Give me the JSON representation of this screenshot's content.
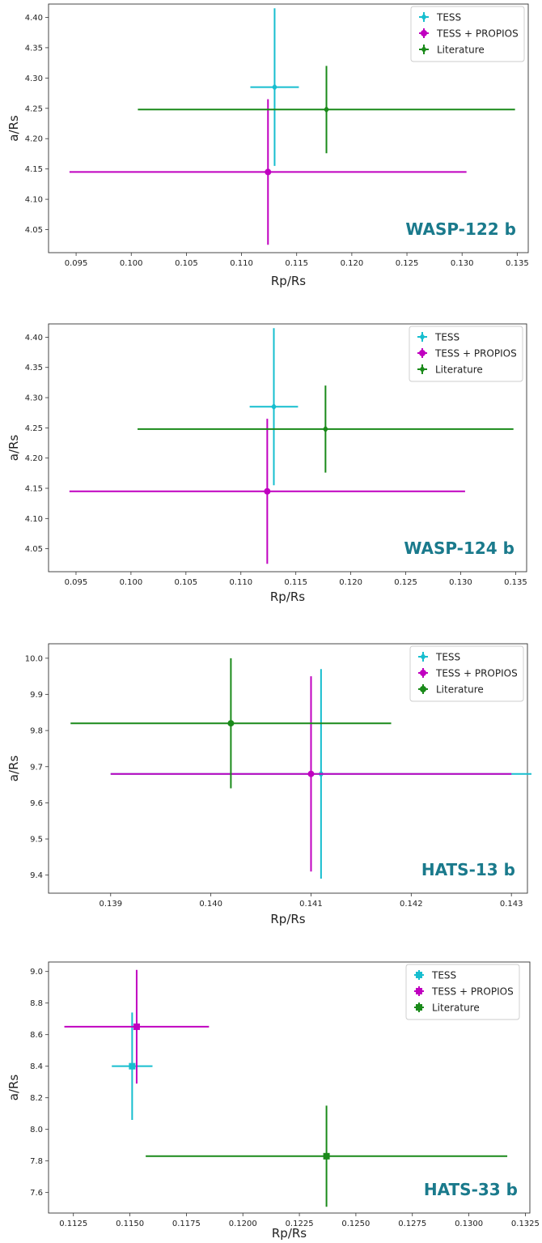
{
  "chart_data": [
    {
      "type": "scatter",
      "panel_label": "WASP-122 b",
      "xlabel": "Rp/Rs",
      "ylabel": "a/Rs",
      "xlim": [
        0.0925,
        0.136
      ],
      "ylim": [
        4.012,
        4.422
      ],
      "xticks": [
        0.095,
        0.1,
        0.105,
        0.11,
        0.115,
        0.12,
        0.125,
        0.13,
        0.135
      ],
      "xtick_labels": [
        "0.095",
        "0.100",
        "0.105",
        "0.110",
        "0.115",
        "0.120",
        "0.125",
        "0.130",
        "0.135"
      ],
      "yticks": [
        4.05,
        4.1,
        4.15,
        4.2,
        4.25,
        4.3,
        4.35,
        4.4
      ],
      "ytick_labels": [
        "4.05",
        "4.10",
        "4.15",
        "4.20",
        "4.25",
        "4.30",
        "4.35",
        "4.40"
      ],
      "legend_position": "top-right",
      "series": [
        {
          "name": "TESS",
          "color": "#17becf",
          "marker": "diamond",
          "x": 0.113,
          "y": 4.285,
          "xerr": 0.0022,
          "yerr": 0.13
        },
        {
          "name": "TESS + PROPIOS",
          "color": "#c000c0",
          "marker": "circle",
          "x": 0.1124,
          "y": 4.145,
          "xerr": [
            0.018,
            0.018
          ],
          "yerr": 0.12
        },
        {
          "name": "Literature",
          "color": "#1a8a1a",
          "marker": "diamond",
          "x": 0.1177,
          "y": 4.248,
          "xerr": [
            0.0171,
            0.0171
          ],
          "yerr": 0.072
        }
      ]
    },
    {
      "type": "scatter",
      "panel_label": "WASP-124 b",
      "xlabel": "Rp/Rs",
      "ylabel": "a/Rs",
      "xlim": [
        0.0925,
        0.136
      ],
      "ylim": [
        4.012,
        4.422
      ],
      "xticks": [
        0.095,
        0.1,
        0.105,
        0.11,
        0.115,
        0.12,
        0.125,
        0.13,
        0.135
      ],
      "xtick_labels": [
        "0.095",
        "0.100",
        "0.105",
        "0.110",
        "0.115",
        "0.120",
        "0.125",
        "0.130",
        "0.135"
      ],
      "yticks": [
        4.05,
        4.1,
        4.15,
        4.2,
        4.25,
        4.3,
        4.35,
        4.4
      ],
      "ytick_labels": [
        "4.05",
        "4.10",
        "4.15",
        "4.20",
        "4.25",
        "4.30",
        "4.35",
        "4.40"
      ],
      "legend_position": "top-right",
      "series": [
        {
          "name": "TESS",
          "color": "#17becf",
          "marker": "diamond",
          "x": 0.113,
          "y": 4.285,
          "xerr": 0.0022,
          "yerr": 0.13
        },
        {
          "name": "TESS + PROPIOS",
          "color": "#c000c0",
          "marker": "circle",
          "x": 0.1124,
          "y": 4.145,
          "xerr": [
            0.018,
            0.018
          ],
          "yerr": 0.12
        },
        {
          "name": "Literature",
          "color": "#1a8a1a",
          "marker": "diamond",
          "x": 0.1177,
          "y": 4.248,
          "xerr": [
            0.0171,
            0.0171
          ],
          "yerr": 0.072
        }
      ]
    },
    {
      "type": "scatter",
      "panel_label": "HATS-13 b",
      "xlabel": "Rp/Rs",
      "ylabel": "a/Rs",
      "xlim": [
        0.13838,
        0.14316
      ],
      "ylim": [
        9.35,
        10.04
      ],
      "xticks": [
        0.139,
        0.14,
        0.141,
        0.142,
        0.143
      ],
      "xtick_labels": [
        "0.139",
        "0.140",
        "0.141",
        "0.142",
        "0.143"
      ],
      "yticks": [
        9.4,
        9.5,
        9.6,
        9.7,
        9.8,
        9.9,
        10.0
      ],
      "ytick_labels": [
        "9.4",
        "9.5",
        "9.6",
        "9.7",
        "9.8",
        "9.9",
        "10.0"
      ],
      "legend_position": "top-right",
      "series": [
        {
          "name": "TESS",
          "color": "#17becf",
          "marker": "diamond",
          "x": 0.1411,
          "y": 9.68,
          "xerr": [
            0.0021,
            0.0021
          ],
          "yerr": [
            0.29,
            0.29
          ]
        },
        {
          "name": "TESS + PROPIOS",
          "color": "#c000c0",
          "marker": "circle",
          "x": 0.141,
          "y": 9.68,
          "xerr": [
            0.002,
            0.002
          ],
          "yerr": [
            0.27,
            0.27
          ]
        },
        {
          "name": "Literature",
          "color": "#1a8a1a",
          "marker": "circle",
          "x": 0.1402,
          "y": 9.82,
          "xerr": [
            0.0016,
            0.0016
          ],
          "yerr": [
            0.18,
            0.18
          ]
        }
      ]
    },
    {
      "type": "scatter",
      "panel_label": "HATS-33 b",
      "xlabel": "Rp/Rs",
      "ylabel": "a/Rs",
      "xlim": [
        0.1114,
        0.1327
      ],
      "ylim": [
        7.47,
        9.06
      ],
      "xticks": [
        0.1125,
        0.115,
        0.1175,
        0.12,
        0.1225,
        0.125,
        0.1275,
        0.13,
        0.1325
      ],
      "xtick_labels": [
        "0.1125",
        "0.1150",
        "0.1175",
        "0.1200",
        "0.1225",
        "0.1250",
        "0.1275",
        "0.1300",
        "0.1325"
      ],
      "yticks": [
        7.6,
        7.8,
        8.0,
        8.2,
        8.4,
        8.6,
        8.8,
        9.0
      ],
      "ytick_labels": [
        "7.6",
        "7.8",
        "8.0",
        "8.2",
        "8.4",
        "8.6",
        "8.8",
        "9.0"
      ],
      "legend_position": "top-right",
      "series": [
        {
          "name": "TESS",
          "color": "#17becf",
          "marker": "square",
          "x": 0.1151,
          "y": 8.4,
          "xerr": [
            0.0009,
            0.0009
          ],
          "yerr": [
            0.34,
            0.34
          ]
        },
        {
          "name": "TESS + PROPIOS",
          "color": "#c000c0",
          "marker": "square",
          "x": 0.1153,
          "y": 8.65,
          "xerr": [
            0.0032,
            0.0032
          ],
          "yerr": [
            0.36,
            0.36
          ]
        },
        {
          "name": "Literature",
          "color": "#1a8a1a",
          "marker": "square",
          "x": 0.1237,
          "y": 7.83,
          "xerr": [
            0.008,
            0.008
          ],
          "yerr": [
            0.32,
            0.32
          ]
        }
      ]
    }
  ]
}
